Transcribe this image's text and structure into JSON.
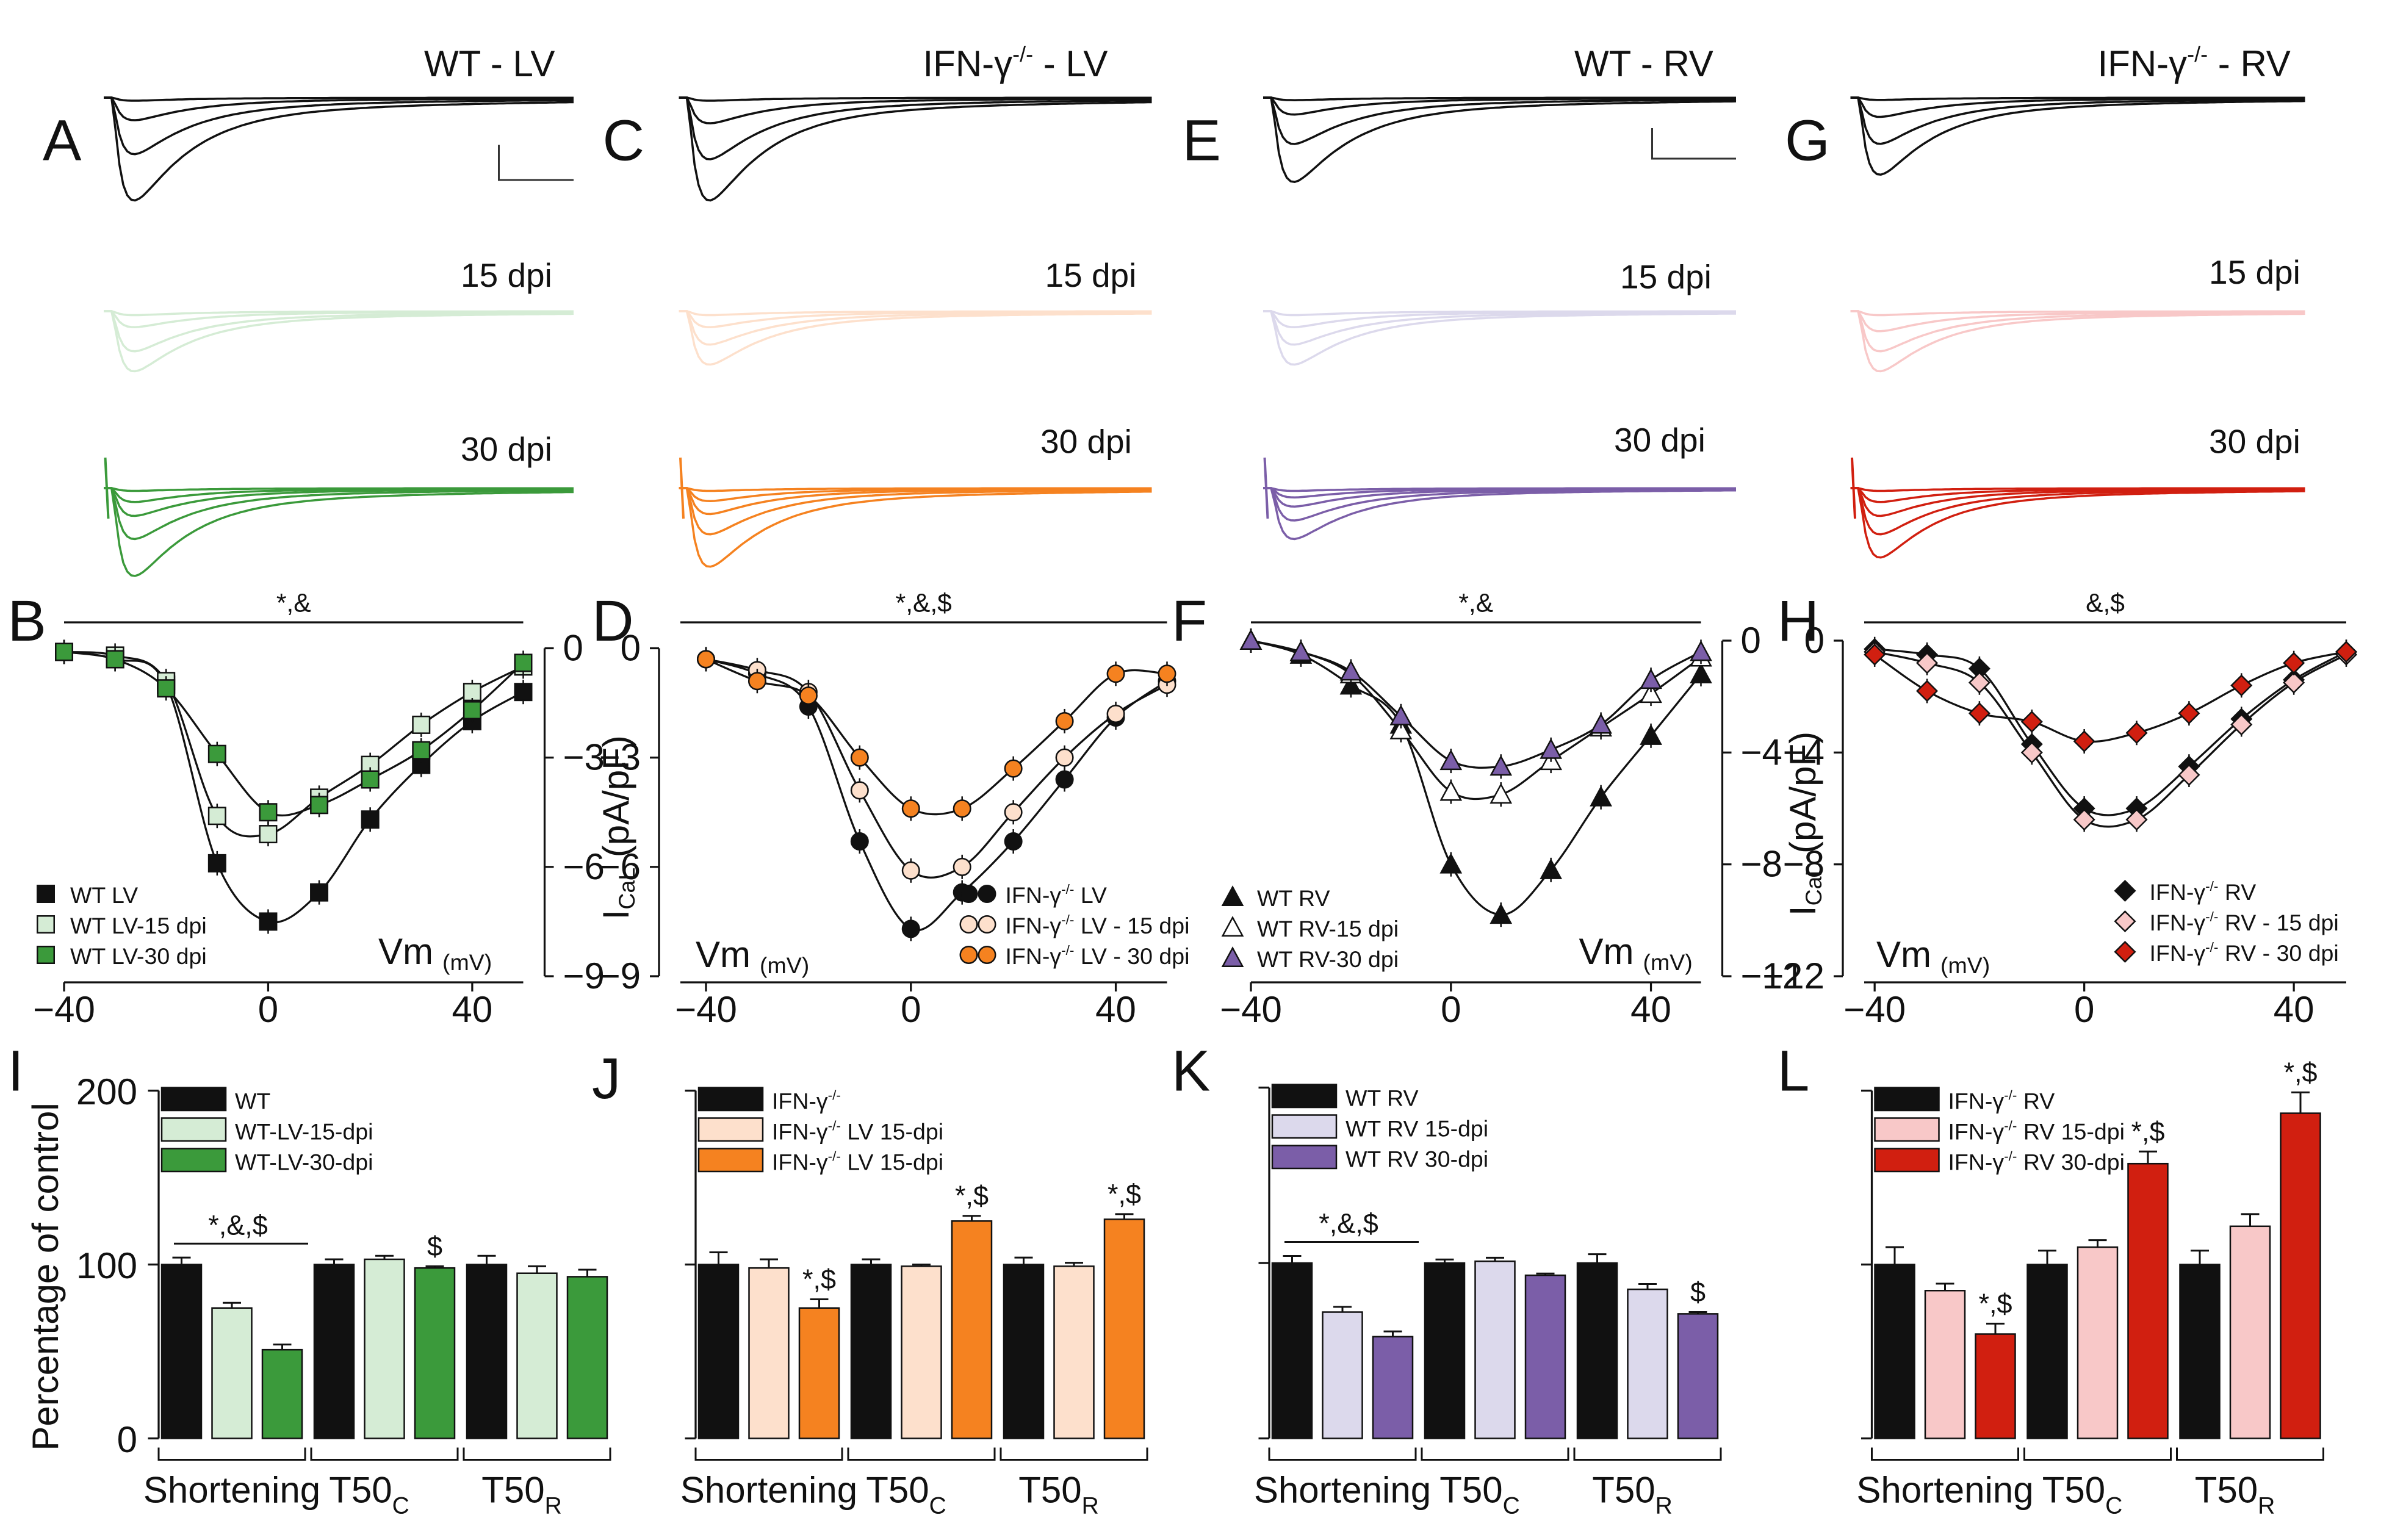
{
  "figure": {
    "panel_letters": [
      "A",
      "C",
      "E",
      "G",
      "B",
      "D",
      "F",
      "H",
      "I",
      "J",
      "K",
      "L"
    ],
    "dpi_labels": {
      "d15": "15 dpi",
      "d30": "30 dpi"
    },
    "colors": {
      "black": "#111111",
      "green_light": "#d5ecd5",
      "green": "#3b9a3b",
      "orange_light": "#fde0cc",
      "orange": "#f58220",
      "purple_light": "#dcd9ec",
      "purple": "#7b5ea8",
      "red_light": "#f8c8c8",
      "red": "#d11f10"
    }
  },
  "chart_data": [
    {
      "panel": "A",
      "type": "line",
      "title": "WT - LV",
      "group": "green",
      "amplitudes": [
        1.0,
        0.55,
        0.22
      ],
      "amp15": [
        0.45,
        0.3,
        0.12
      ],
      "amp30": [
        0.95,
        0.55,
        0.3,
        0.15
      ]
    },
    {
      "panel": "C",
      "type": "line",
      "title": "IFN-γ-/- - LV",
      "group": "orange",
      "amplitudes": [
        1.0,
        0.6,
        0.25
      ],
      "amp15": [
        0.4,
        0.25,
        0.12
      ],
      "amp30": [
        0.85,
        0.5,
        0.28,
        0.14
      ]
    },
    {
      "panel": "E",
      "type": "line",
      "title": "WT - RV",
      "group": "purple",
      "amplitudes": [
        1.0,
        0.55,
        0.2
      ],
      "amp15": [
        0.4,
        0.25,
        0.12
      ],
      "amp30": [
        0.55,
        0.35,
        0.2,
        0.1
      ]
    },
    {
      "panel": "G",
      "type": "line",
      "title": "IFN-γ-/- - RV",
      "group": "red",
      "amplitudes": [
        1.0,
        0.6,
        0.25
      ],
      "amp15": [
        0.45,
        0.3,
        0.15
      ],
      "amp30": [
        0.75,
        0.5,
        0.3,
        0.15
      ]
    },
    {
      "panel": "B",
      "type": "scatter",
      "group": "green",
      "xlabel": "Vm",
      "xunit": "(mV)",
      "ylabel": "",
      "xlim": [
        -40,
        50
      ],
      "ylim": [
        -9,
        0
      ],
      "yticks": [
        0,
        -3,
        -6,
        -9
      ],
      "xticks": [
        -40,
        0,
        40
      ],
      "sig": "*,&",
      "yaxis_side": "right",
      "x": [
        -40,
        -30,
        -20,
        -10,
        0,
        10,
        20,
        30,
        40,
        50
      ],
      "series": [
        {
          "name": "WT LV",
          "marker": "square",
          "fill": "black",
          "values": [
            -0.1,
            -0.3,
            -1.0,
            -5.9,
            -7.5,
            -6.7,
            -4.7,
            -3.2,
            -2.0,
            -1.2
          ]
        },
        {
          "name": "WT LV-15 dpi",
          "marker": "square",
          "fill": "green_light",
          "values": [
            -0.1,
            -0.2,
            -0.9,
            -4.6,
            -5.1,
            -4.1,
            -3.2,
            -2.1,
            -1.2,
            -0.5
          ]
        },
        {
          "name": "WT LV-30 dpi",
          "marker": "square",
          "fill": "green",
          "values": [
            -0.1,
            -0.3,
            -1.1,
            -2.9,
            -4.5,
            -4.3,
            -3.6,
            -2.8,
            -1.7,
            -0.4
          ]
        }
      ]
    },
    {
      "panel": "D",
      "type": "scatter",
      "group": "orange",
      "xlabel": "Vm",
      "xunit": "(mV)",
      "ylabel": "ICaL (pA/pF)",
      "xlim": [
        -45,
        50
      ],
      "ylim": [
        -9,
        0
      ],
      "yticks": [
        0,
        -3,
        -6,
        -9
      ],
      "xticks": [
        -40,
        0,
        40
      ],
      "sig": "*,&,$",
      "yaxis_side": "left",
      "x": [
        -40,
        -30,
        -20,
        -10,
        0,
        10,
        20,
        30,
        40,
        50
      ],
      "series": [
        {
          "name": "IFN-γ-/- LV",
          "marker": "circle",
          "fill": "black",
          "values": [
            -0.3,
            -0.7,
            -1.6,
            -5.3,
            -7.7,
            -6.7,
            -5.3,
            -3.6,
            -1.9,
            -0.9
          ]
        },
        {
          "name": "IFN-γ-/- LV - 15 dpi",
          "marker": "circle",
          "fill": "orange_light",
          "values": [
            -0.3,
            -0.6,
            -1.2,
            -3.9,
            -6.1,
            -6.0,
            -4.5,
            -3.0,
            -1.8,
            -1.0
          ]
        },
        {
          "name": "IFN-γ-/- LV - 30 dpi",
          "marker": "circle",
          "fill": "orange",
          "values": [
            -0.3,
            -0.9,
            -1.3,
            -3.0,
            -4.4,
            -4.4,
            -3.3,
            -2.0,
            -0.7,
            -0.7
          ]
        }
      ]
    },
    {
      "panel": "F",
      "type": "scatter",
      "group": "purple",
      "xlabel": "Vm",
      "xunit": "(mV)",
      "ylabel": "ICaL (pA/pF)",
      "xlim": [
        -40,
        50
      ],
      "ylim": [
        -12,
        0
      ],
      "yticks": [
        0,
        -4,
        -8,
        -12
      ],
      "xticks": [
        -40,
        0,
        40
      ],
      "sig": "*,&",
      "yaxis_side": "right",
      "x": [
        -40,
        -30,
        -20,
        -10,
        0,
        10,
        20,
        30,
        40,
        50
      ],
      "series": [
        {
          "name": "WT RV",
          "marker": "triangle",
          "fill": "black",
          "values": [
            0,
            -0.5,
            -1.6,
            -3.0,
            -8.0,
            -9.8,
            -8.2,
            -5.6,
            -3.4,
            -1.2
          ]
        },
        {
          "name": "WT RV-15 dpi",
          "marker": "triangle",
          "fill": "white",
          "values": [
            0,
            -0.4,
            -1.2,
            -3.2,
            -5.4,
            -5.5,
            -4.3,
            -3.1,
            -1.9,
            -0.6
          ]
        },
        {
          "name": "WT RV-30 dpi",
          "marker": "triangle",
          "fill": "purple",
          "values": [
            0,
            -0.4,
            -1.1,
            -2.7,
            -4.3,
            -4.5,
            -3.9,
            -3.0,
            -1.4,
            -0.4
          ]
        }
      ]
    },
    {
      "panel": "H",
      "type": "scatter",
      "group": "red",
      "xlabel": "Vm",
      "xunit": "(mV)",
      "ylabel": "",
      "xlim": [
        -42,
        50
      ],
      "ylim": [
        -12,
        0
      ],
      "yticks": [
        0,
        -4,
        -8,
        -12
      ],
      "xticks": [
        -40,
        0,
        40
      ],
      "sig": "&,$",
      "yaxis_side": "left",
      "x": [
        -40,
        -30,
        -20,
        -10,
        0,
        10,
        20,
        30,
        40,
        50
      ],
      "series": [
        {
          "name": "IFN-γ-/- RV",
          "marker": "diamond",
          "fill": "black",
          "values": [
            -0.3,
            -0.5,
            -1.0,
            -3.7,
            -6.0,
            -6.0,
            -4.5,
            -2.8,
            -1.4,
            -0.4
          ]
        },
        {
          "name": "IFN-γ-/- RV - 15 dpi",
          "marker": "diamond",
          "fill": "red_light",
          "values": [
            -0.4,
            -0.8,
            -1.5,
            -4.0,
            -6.4,
            -6.4,
            -4.8,
            -3.0,
            -1.5,
            -0.5
          ]
        },
        {
          "name": "IFN-γ-/- RV - 30 dpi",
          "marker": "diamond",
          "fill": "red",
          "values": [
            -0.5,
            -1.8,
            -2.6,
            -2.9,
            -3.6,
            -3.3,
            -2.6,
            -1.6,
            -0.8,
            -0.4
          ]
        }
      ]
    },
    {
      "panel": "I",
      "type": "bar",
      "group": "green",
      "ylabel": "Percentage of control",
      "ylim": [
        0,
        200
      ],
      "yticks": [
        0,
        100,
        200
      ],
      "categories": [
        "Shortening",
        "T50C",
        "T50R"
      ],
      "series": [
        {
          "name": "WT",
          "fill": "black",
          "values": [
            100,
            100,
            100
          ],
          "errors": [
            4,
            3,
            5
          ]
        },
        {
          "name": "WT-LV-15-dpi",
          "fill": "green_light",
          "values": [
            75,
            103,
            95
          ],
          "errors": [
            3,
            2,
            4
          ]
        },
        {
          "name": "WT-LV-30-dpi",
          "fill": "green",
          "values": [
            51,
            98,
            93
          ],
          "errors": [
            3,
            1,
            4
          ]
        }
      ],
      "annotations": [
        {
          "text": "*,&,$",
          "cat": 0,
          "bracket": true
        },
        {
          "text": "$",
          "cat": 1,
          "series": 2
        }
      ]
    },
    {
      "panel": "J",
      "type": "bar",
      "group": "orange",
      "ylabel": "",
      "ylim": [
        0,
        200
      ],
      "yticks": [
        0,
        100,
        200
      ],
      "categories": [
        "Shortening",
        "T50C",
        "T50R"
      ],
      "series": [
        {
          "name": "IFN-γ-/-",
          "fill": "black",
          "values": [
            100,
            100,
            100
          ],
          "errors": [
            7,
            3,
            4
          ]
        },
        {
          "name": "IFN-γ-/- LV 15-dpi",
          "fill": "orange_light",
          "values": [
            98,
            99,
            99
          ],
          "errors": [
            5,
            1,
            2
          ]
        },
        {
          "name": "IFN-γ-/- LV 15-dpi",
          "fill": "orange",
          "values": [
            75,
            125,
            126
          ],
          "errors": [
            5,
            3,
            3
          ]
        }
      ],
      "annotations": [
        {
          "text": "*,$",
          "cat": 0,
          "series": 2
        },
        {
          "text": "*,$",
          "cat": 1,
          "series": 2
        },
        {
          "text": "*,$",
          "cat": 2,
          "series": 2
        }
      ]
    },
    {
      "panel": "K",
      "type": "bar",
      "group": "purple",
      "ylabel": "",
      "ylim": [
        0,
        200
      ],
      "yticks": [
        0,
        100,
        200
      ],
      "categories": [
        "Shortening",
        "T50C",
        "T50R"
      ],
      "series": [
        {
          "name": "WT RV",
          "fill": "black",
          "values": [
            100,
            100,
            100
          ],
          "errors": [
            4,
            2,
            5
          ]
        },
        {
          "name": "WT RV 15-dpi",
          "fill": "purple_light",
          "values": [
            72,
            101,
            85
          ],
          "errors": [
            3,
            2,
            3
          ]
        },
        {
          "name": "WT RV 30-dpi",
          "fill": "purple",
          "values": [
            58,
            93,
            71
          ],
          "errors": [
            3,
            1,
            1
          ]
        }
      ],
      "annotations": [
        {
          "text": "*,&,$",
          "cat": 0,
          "bracket": true
        },
        {
          "text": "$",
          "cat": 2,
          "series": 2
        }
      ]
    },
    {
      "panel": "L",
      "type": "bar",
      "group": "red",
      "ylabel": "",
      "ylim": [
        0,
        200
      ],
      "yticks": [
        0,
        100,
        200
      ],
      "categories": [
        "Shortening",
        "T50C",
        "T50R"
      ],
      "series": [
        {
          "name": "IFN-γ-/- RV",
          "fill": "black",
          "values": [
            100,
            100,
            100
          ],
          "errors": [
            10,
            8,
            8
          ]
        },
        {
          "name": "IFN-γ-/- RV 15-dpi",
          "fill": "red_light",
          "values": [
            85,
            110,
            122
          ],
          "errors": [
            4,
            4,
            7
          ]
        },
        {
          "name": "IFN-γ-/- RV 30-dpi",
          "fill": "red",
          "values": [
            60,
            158,
            187
          ],
          "errors": [
            6,
            7,
            12
          ]
        }
      ],
      "annotations": [
        {
          "text": "*,$",
          "cat": 0,
          "series": 2
        },
        {
          "text": "*,$",
          "cat": 1,
          "series": 2
        },
        {
          "text": "*,$",
          "cat": 2,
          "series": 2
        }
      ]
    }
  ]
}
